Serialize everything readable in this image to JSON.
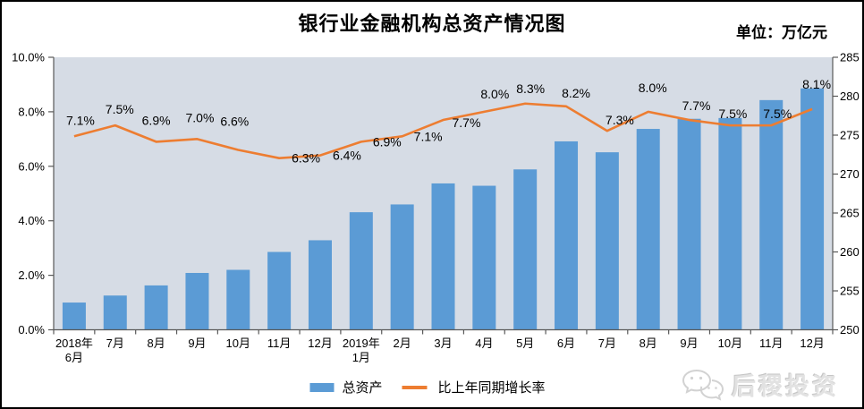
{
  "chart_data": {
    "type": "combo-bar-line",
    "title": "银行业金融机构总资产情况图",
    "unit_label": "单位：万亿元",
    "categories": [
      "2018年6月",
      "7月",
      "8月",
      "9月",
      "10月",
      "11月",
      "12月",
      "2019年1月",
      "2月",
      "3月",
      "4月",
      "5月",
      "6月",
      "7月",
      "8月",
      "9月",
      "10月",
      "11月",
      "12月"
    ],
    "x_tick_lines": [
      [
        "2018年",
        "6月"
      ],
      [
        "7月"
      ],
      [
        "8月"
      ],
      [
        "9月"
      ],
      [
        "10月"
      ],
      [
        "11月"
      ],
      [
        "12月"
      ],
      [
        "2019年",
        "1月"
      ],
      [
        "2月"
      ],
      [
        "3月"
      ],
      [
        "4月"
      ],
      [
        "5月"
      ],
      [
        "6月"
      ],
      [
        "7月"
      ],
      [
        "8月"
      ],
      [
        "9月"
      ],
      [
        "10月"
      ],
      [
        "11月"
      ],
      [
        "12月"
      ]
    ],
    "series": [
      {
        "name": "总资产",
        "type": "bar",
        "axis": "right",
        "color": "#5b9bd5",
        "values": [
          253.5,
          254.4,
          255.7,
          257.3,
          257.7,
          260.0,
          261.5,
          265.1,
          266.1,
          268.8,
          268.5,
          270.6,
          274.2,
          272.8,
          275.8,
          277.1,
          277.2,
          279.5,
          281.0
        ]
      },
      {
        "name": "比上年同期增长率",
        "type": "line",
        "axis": "left",
        "color": "#ed7d31",
        "values": [
          7.1,
          7.5,
          6.9,
          7.0,
          6.6,
          6.3,
          6.4,
          6.9,
          7.1,
          7.7,
          8.0,
          8.3,
          8.2,
          7.3,
          8.0,
          7.7,
          7.5,
          7.5,
          8.1
        ],
        "labels": [
          "7.1%",
          "7.5%",
          "6.9%",
          "7.0%",
          "6.6%",
          "6.3%",
          "6.4%",
          "6.9%",
          "7.1%",
          "7.7%",
          "8.0%",
          "8.3%",
          "8.2%",
          "7.3%",
          "8.0%",
          "7.7%",
          "7.5%",
          "7.5%",
          "8.1%"
        ]
      }
    ],
    "axes": {
      "left": {
        "min": 0,
        "max": 10,
        "tick_labels": [
          "0.0%",
          "2.0%",
          "4.0%",
          "6.0%",
          "8.0%",
          "10.0%"
        ]
      },
      "right": {
        "min": 250,
        "max": 285,
        "tick_labels": [
          "250",
          "255",
          "260",
          "265",
          "270",
          "275",
          "280",
          "285"
        ]
      }
    },
    "plot_bg": "#d6dce5",
    "axis_color": "#595959",
    "legend": [
      {
        "label": "总资产",
        "swatch": "bar",
        "color": "#5b9bd5"
      },
      {
        "label": "比上年同期增长率",
        "swatch": "line",
        "color": "#ed7d31"
      }
    ],
    "legend_position": "bottom-center",
    "grid": false
  },
  "watermark": {
    "text": "后稷投资",
    "icon": "wechat-bubbles-icon"
  }
}
